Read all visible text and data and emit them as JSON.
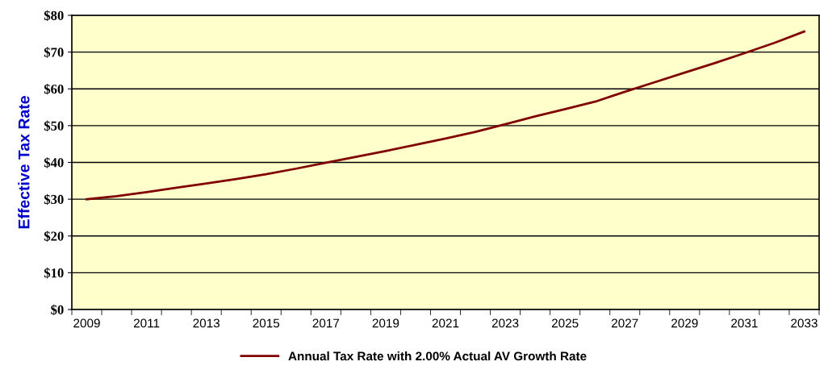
{
  "chart_data": {
    "type": "line",
    "ylabel": "Effective Tax Rate",
    "categories": [
      "2009",
      null,
      "2011",
      null,
      "2013",
      null,
      "2015",
      null,
      "2017",
      null,
      "2019",
      null,
      "2021",
      null,
      "2023",
      null,
      "2025",
      null,
      "2027",
      null,
      "2029",
      null,
      "2031",
      null,
      "2033"
    ],
    "series": [
      {
        "name": "Annual Tax Rate with 2.00% Actual AV Growth Rate",
        "color": "#800000",
        "values": [
          30,
          30.8,
          31.9,
          33.1,
          34.3,
          35.5,
          36.8,
          38.3,
          39.9,
          41.5,
          43.1,
          44.8,
          46.5,
          48.3,
          50.4,
          52.5,
          54.5,
          56.5,
          59.2,
          61.8,
          64.4,
          67.0,
          69.7,
          72.5,
          75.6
        ]
      }
    ],
    "ylim": [
      0,
      80
    ],
    "yticks": [
      {
        "value": 0,
        "label": "$0"
      },
      {
        "value": 10,
        "label": "$10"
      },
      {
        "value": 20,
        "label": "$20"
      },
      {
        "value": 30,
        "label": "$30"
      },
      {
        "value": 40,
        "label": "$40"
      },
      {
        "value": 50,
        "label": "$50"
      },
      {
        "value": 60,
        "label": "$60"
      },
      {
        "value": 70,
        "label": "$70"
      },
      {
        "value": 80,
        "label": "$80"
      }
    ],
    "grid": "y",
    "legend": "bottom",
    "marker": "none",
    "line_style": "solid"
  }
}
